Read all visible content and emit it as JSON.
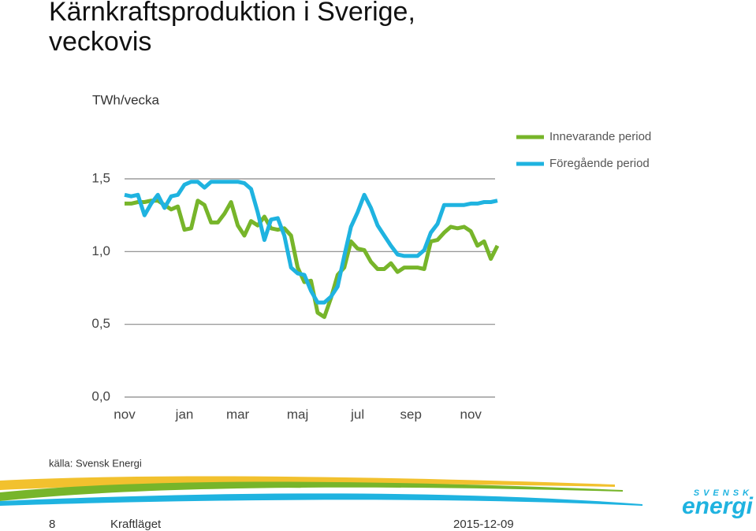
{
  "chart_data": {
    "type": "line",
    "title": "Kärnkraftsproduktion i Sverige, veckovis",
    "y_label": "TWh/vecka",
    "categories": [
      "nov",
      null,
      null,
      null,
      null,
      null,
      null,
      null,
      null,
      "jan",
      null,
      null,
      null,
      null,
      null,
      null,
      null,
      "mar",
      null,
      null,
      null,
      null,
      null,
      null,
      null,
      null,
      "maj",
      null,
      null,
      null,
      null,
      null,
      null,
      null,
      null,
      "jul",
      null,
      null,
      null,
      null,
      null,
      null,
      null,
      "sep",
      null,
      null,
      null,
      null,
      null,
      null,
      null,
      null,
      "nov",
      null,
      null,
      null,
      null
    ],
    "series": [
      {
        "name": "Innevarande period",
        "color": "#77b52a",
        "values": [
          1.33,
          1.33,
          1.34,
          1.34,
          1.35,
          1.35,
          1.32,
          1.29,
          1.31,
          1.15,
          1.16,
          1.35,
          1.32,
          1.2,
          1.2,
          1.26,
          1.34,
          1.18,
          1.11,
          1.21,
          1.18,
          1.24,
          1.16,
          1.15,
          1.16,
          1.11,
          0.89,
          0.79,
          0.8,
          0.58,
          0.55,
          0.68,
          0.84,
          0.89,
          1.07,
          1.02,
          1.01,
          0.93,
          0.88,
          0.88,
          0.92,
          0.86,
          0.89,
          0.89,
          0.89,
          0.88,
          1.07,
          1.08,
          1.13,
          1.17,
          1.16,
          1.17,
          1.14,
          1.04,
          1.07,
          0.95,
          1.04
        ]
      },
      {
        "name": "Föregående period",
        "color": "#1fb3e0",
        "values": [
          1.39,
          1.38,
          1.39,
          1.25,
          1.33,
          1.39,
          1.3,
          1.38,
          1.39,
          1.46,
          1.48,
          1.48,
          1.44,
          1.48,
          1.48,
          1.48,
          1.48,
          1.48,
          1.47,
          1.43,
          1.27,
          1.08,
          1.22,
          1.23,
          1.11,
          0.89,
          0.85,
          0.84,
          0.73,
          0.65,
          0.65,
          0.69,
          0.76,
          0.97,
          1.17,
          1.27,
          1.39,
          1.3,
          1.18,
          1.11,
          1.04,
          0.98,
          0.97,
          0.97,
          0.97,
          1.01,
          1.13,
          1.19,
          1.32,
          1.32,
          1.32,
          1.32,
          1.33,
          1.33,
          1.34,
          1.34,
          1.35
        ]
      }
    ],
    "ylim": [
      0,
      1.5
    ],
    "yticks": [
      {
        "value": 0,
        "label": "0,0"
      },
      {
        "value": 0.5,
        "label": "0,5"
      },
      {
        "value": 1,
        "label": "1,0"
      },
      {
        "value": 1.5,
        "label": "1,5"
      }
    ],
    "grid": true,
    "legend": "top-right"
  },
  "source": "källa: Svensk Energi",
  "footer": {
    "page": "8",
    "name": "Kraftläget",
    "date": "2015-12-09"
  },
  "logo": {
    "top": "SVENSK",
    "bottom": "energi"
  }
}
